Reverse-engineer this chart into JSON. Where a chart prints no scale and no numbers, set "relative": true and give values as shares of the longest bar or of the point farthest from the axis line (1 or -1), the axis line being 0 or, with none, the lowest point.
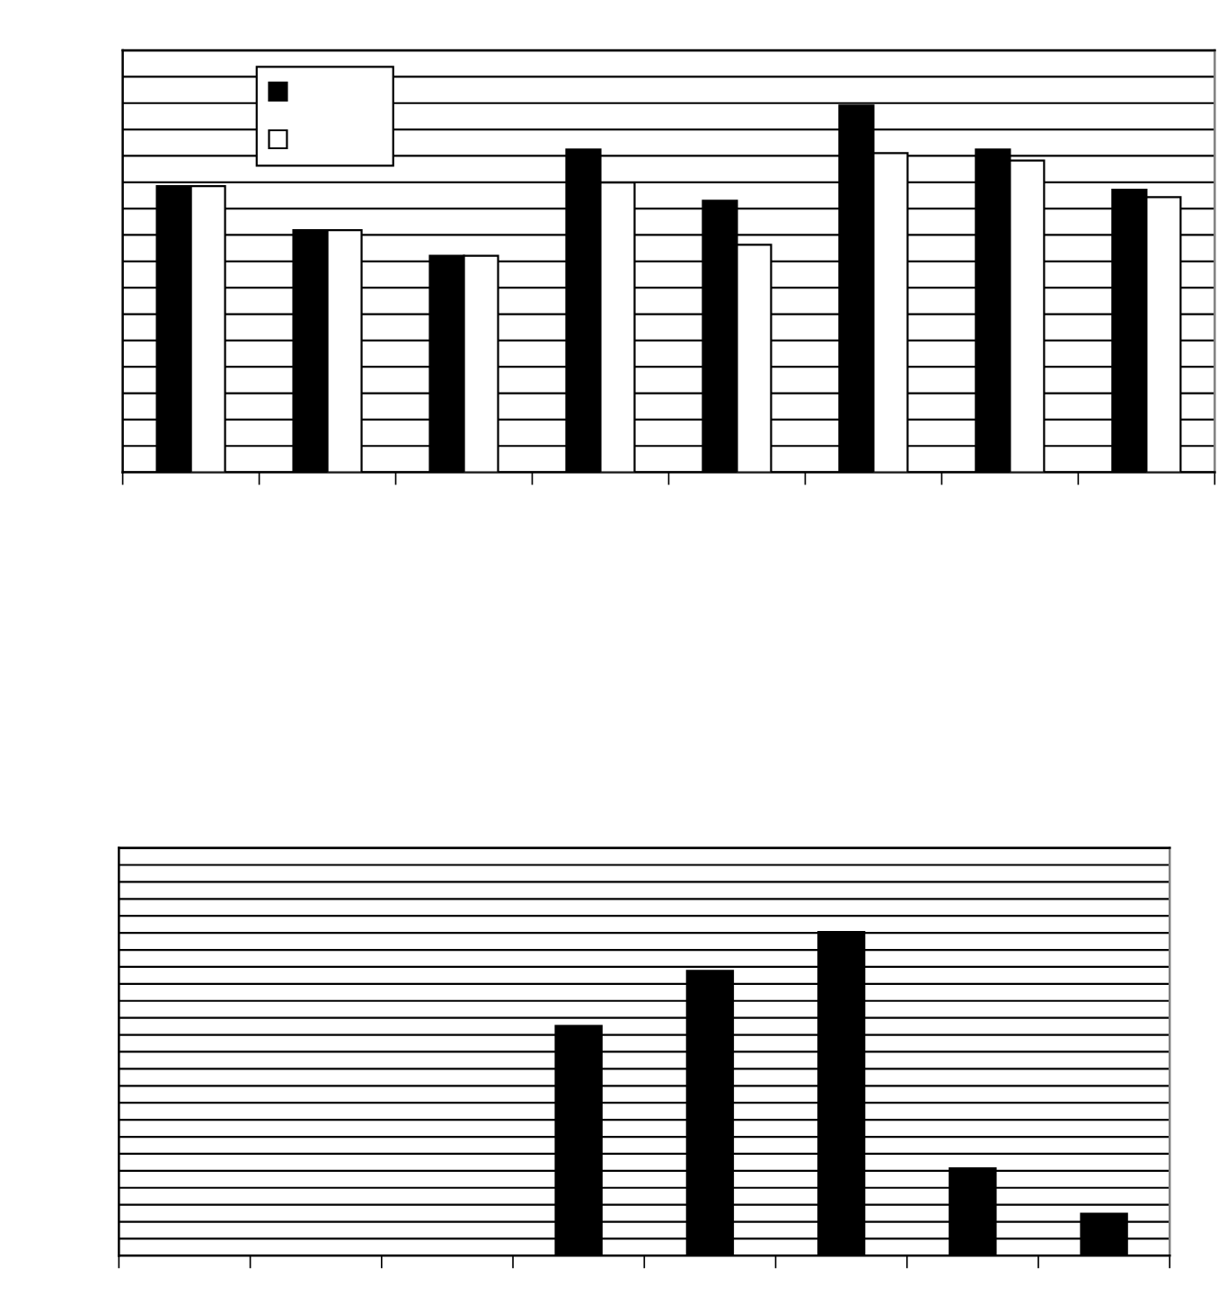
{
  "chart_data": [
    {
      "type": "bar",
      "relative": true,
      "categories": [
        null,
        null,
        null,
        null,
        null,
        null,
        null,
        null
      ],
      "series": [
        {
          "color": "#000000",
          "values": [
            0.78,
            0.66,
            0.59,
            0.88,
            0.74,
            1,
            0.88,
            0.77
          ]
        },
        {
          "color": "#ffffff",
          "values": [
            0.78,
            0.66,
            0.59,
            0.79,
            0.62,
            0.87,
            0.85,
            0.75
          ]
        }
      ],
      "grid": "y"
    },
    {
      "type": "bar",
      "relative": true,
      "categories": [
        null,
        null,
        null,
        null,
        null,
        null,
        null,
        null
      ],
      "values": [
        null,
        null,
        null,
        0.71,
        0.88,
        1,
        0.27,
        0.13
      ],
      "color": "#000000",
      "grid": "y"
    }
  ]
}
